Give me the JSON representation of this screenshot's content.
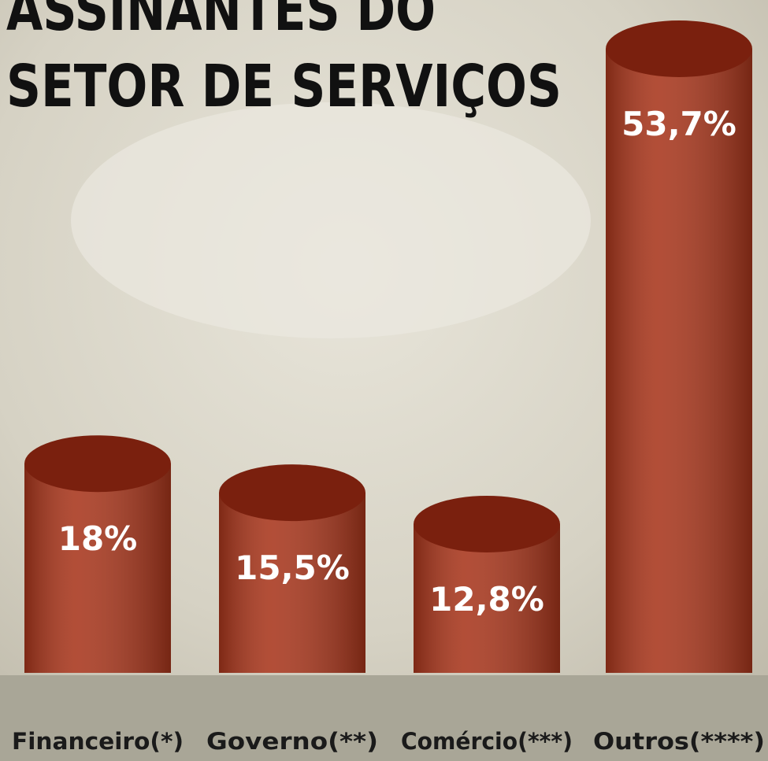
{
  "chart_data": {
    "type": "cylinder-bar",
    "title": [
      "ASSINANTES DO",
      "SETOR DE SERVIÇOS"
    ],
    "categories": [
      "Financeiro(*)",
      "Governo(**)",
      "Comércio(***)",
      "Outros(****)"
    ],
    "values": [
      18,
      15.5,
      12.8,
      53.7
    ],
    "value_labels": [
      "18%",
      "15,5%",
      "12,8%",
      "53,7%"
    ],
    "color": "#a8361c"
  }
}
